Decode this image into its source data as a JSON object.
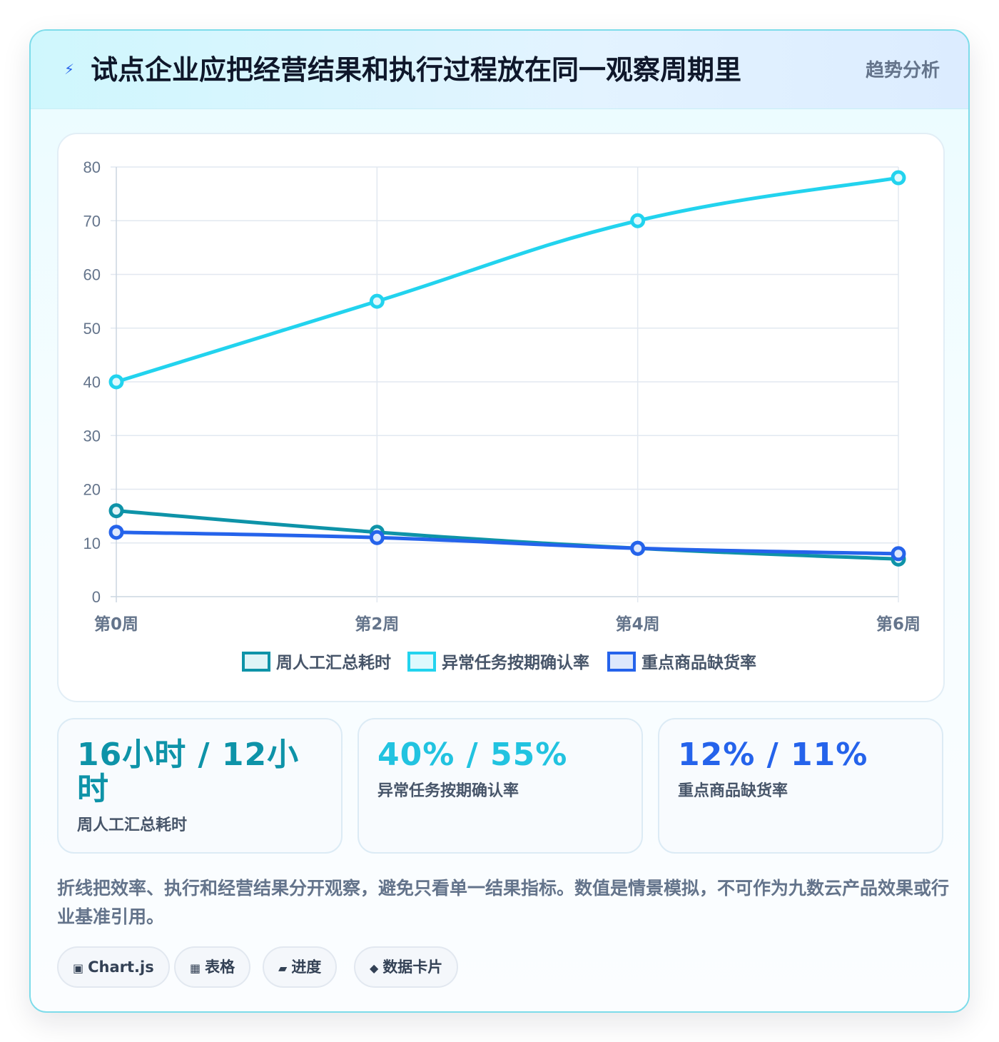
{
  "header": {
    "icon": "lightning-icon",
    "title": "试点企业应把经营结果和执行过程放在同一观察周期里",
    "badge": "趋势分析"
  },
  "chart_data": {
    "type": "line",
    "categories": [
      "第0周",
      "第2周",
      "第4周",
      "第6周"
    ],
    "ylim": [
      0,
      80
    ],
    "yticks": [
      0,
      10,
      20,
      30,
      40,
      50,
      60,
      70,
      80
    ],
    "grid": true,
    "legend_position": "bottom",
    "series": [
      {
        "name": "周人工汇总耗时",
        "values": [
          16,
          12,
          9,
          7
        ],
        "color": "#0e93a8",
        "fill": "#dff4f7"
      },
      {
        "name": "异常任务按期确认率",
        "values": [
          40,
          55,
          70,
          78
        ],
        "color": "#22d3ee",
        "fill": "#def9fd"
      },
      {
        "name": "重点商品缺货率",
        "values": [
          12,
          11,
          9,
          8
        ],
        "color": "#2563eb",
        "fill": "#dde8fc"
      }
    ]
  },
  "stats": [
    {
      "value": "16小时 / 12小时",
      "label": "周人工汇总耗时",
      "color": "#0e93a8"
    },
    {
      "value": "40% / 55%",
      "label": "异常任务按期确认率",
      "color": "#22c3e0"
    },
    {
      "value": "12% / 11%",
      "label": "重点商品缺货率",
      "color": "#2563eb"
    }
  ],
  "note": "折线把效率、执行和经营结果分开观察，避免只看单一结果指标。数值是情景模拟，不可作为九数云产品效果或行业基准引用。",
  "chips": [
    {
      "icon": "▣",
      "label": "Chart.js"
    },
    {
      "icon": "▦",
      "label": "表格"
    },
    {
      "icon": "▰",
      "label": "进度"
    },
    {
      "icon": "◆",
      "label": "数据卡片"
    }
  ]
}
